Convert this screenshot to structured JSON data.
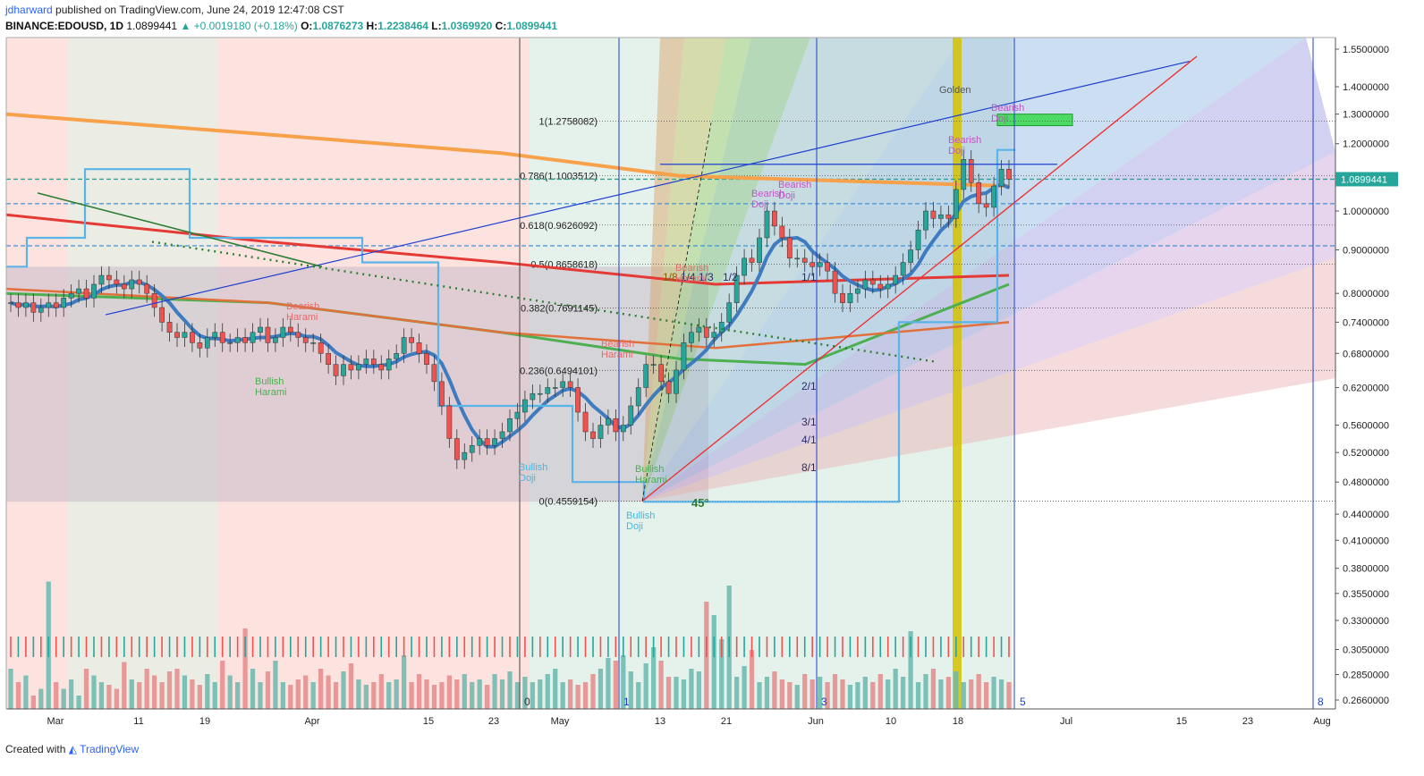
{
  "header": {
    "user": "jdharward",
    "published": "published on TradingView.com, June 24, 2019 12:47:08 CST",
    "symbol": "BINANCE:EDOUSD, 1D",
    "price": "1.0899441",
    "change": "▲ +0.0019180 (+0.18%)",
    "o_label": "O:",
    "o": "1.0876273",
    "h_label": "H:",
    "h": "1.2238464",
    "l_label": "L:",
    "l": "1.0369920",
    "c_label": "C:",
    "c": "1.0899441"
  },
  "footer": {
    "created": "Created with",
    "brand": "TradingView"
  },
  "colors": {
    "up": "#26a69a",
    "down": "#ef5350",
    "ma200": "#f7a14a",
    "ema_blue": "#3e7bbf",
    "ma_red": "#e53935",
    "ma_green": "#4caf50",
    "ma_orange": "#e2703a",
    "gann_yellow": "#d4c200"
  },
  "chart_data": {
    "type": "candlestick",
    "price_axis_ticks": [
      "1.5500000",
      "1.4000000",
      "1.3000000",
      "1.2000000",
      "1.0000000",
      "0.9000000",
      "0.8000000",
      "0.7400000",
      "0.6800000",
      "0.6200000",
      "0.5600000",
      "0.5200000",
      "0.4800000",
      "0.4400000",
      "0.4100000",
      "0.3800000",
      "0.3550000",
      "0.3300000",
      "0.3050000",
      "0.2850000",
      "0.2660000"
    ],
    "current_price_label": "1.0899441",
    "time_axis_ticks": [
      "Mar",
      "11",
      "19",
      "Apr",
      "15",
      "23",
      "May",
      "13",
      "21",
      "Jun",
      "10",
      "18",
      "Jul",
      "15",
      "23",
      "Aug"
    ],
    "fib_levels": [
      {
        "label": "1(1.2758082)",
        "value": 1.2758082
      },
      {
        "label": "0.786(1.1003512)",
        "value": 1.1003512
      },
      {
        "label": "0.618(0.9626092)",
        "value": 0.9626092
      },
      {
        "label": "0.5(0.8658618)",
        "value": 0.8658618
      },
      {
        "label": "0.382(0.7691145)",
        "value": 0.7691145
      },
      {
        "label": "0.236(0.6494101)",
        "value": 0.6494101
      },
      {
        "label": "0(0.4559154)",
        "value": 0.4559154
      }
    ],
    "gann_fan_labels": [
      "1/8",
      "1/4",
      "1/3",
      "1/2",
      "1/1",
      "2/1",
      "3/1",
      "4/1",
      "8/1"
    ],
    "angle_label": "45°",
    "cycle_numbers": [
      "0",
      "1",
      "3",
      "5",
      "8"
    ],
    "annotations": [
      {
        "text": "Golden"
      },
      {
        "text": "Bearish Doji"
      },
      {
        "text": "Bearish Doji"
      },
      {
        "text": "Bearish Doji"
      },
      {
        "text": "Bearish Doji"
      },
      {
        "text": "Bearish Harami"
      },
      {
        "text": "Bearish Harami"
      },
      {
        "text": "Bearish Harami"
      },
      {
        "text": "Bullish Harami"
      },
      {
        "text": "Bullish Harami"
      },
      {
        "text": "Bullish Doji"
      },
      {
        "text": "Bullish Doji"
      }
    ],
    "close_series": [
      0.78,
      0.77,
      0.78,
      0.76,
      0.77,
      0.78,
      0.77,
      0.79,
      0.8,
      0.81,
      0.79,
      0.82,
      0.84,
      0.83,
      0.82,
      0.81,
      0.83,
      0.82,
      0.8,
      0.77,
      0.74,
      0.72,
      0.71,
      0.72,
      0.7,
      0.69,
      0.71,
      0.72,
      0.7,
      0.7,
      0.71,
      0.7,
      0.72,
      0.73,
      0.7,
      0.71,
      0.73,
      0.72,
      0.71,
      0.7,
      0.7,
      0.68,
      0.66,
      0.64,
      0.66,
      0.65,
      0.66,
      0.67,
      0.66,
      0.65,
      0.67,
      0.68,
      0.71,
      0.7,
      0.68,
      0.66,
      0.63,
      0.59,
      0.54,
      0.51,
      0.52,
      0.53,
      0.54,
      0.53,
      0.54,
      0.55,
      0.57,
      0.58,
      0.6,
      0.61,
      0.61,
      0.62,
      0.62,
      0.63,
      0.62,
      0.58,
      0.55,
      0.54,
      0.56,
      0.57,
      0.55,
      0.56,
      0.59,
      0.62,
      0.66,
      0.66,
      0.63,
      0.61,
      0.65,
      0.7,
      0.72,
      0.73,
      0.71,
      0.72,
      0.74,
      0.78,
      0.84,
      0.88,
      0.87,
      0.93,
      1.0,
      0.96,
      0.93,
      0.88,
      0.88,
      0.87,
      0.86,
      0.87,
      0.85,
      0.8,
      0.78,
      0.8,
      0.81,
      0.83,
      0.82,
      0.81,
      0.82,
      0.84,
      0.87,
      0.9,
      0.95,
      1.0,
      0.98,
      0.99,
      0.98,
      1.06,
      1.15,
      1.08,
      1.02,
      1.01,
      1.07,
      1.12,
      1.09
    ],
    "volume_series": [
      0.3,
      0.2,
      0.25,
      0.1,
      0.15,
      0.95,
      0.2,
      0.15,
      0.22,
      0.1,
      0.3,
      0.25,
      0.2,
      0.18,
      0.15,
      0.35,
      0.22,
      0.2,
      0.3,
      0.25,
      0.2,
      0.28,
      0.3,
      0.25,
      0.22,
      0.18,
      0.26,
      0.2,
      0.36,
      0.25,
      0.2,
      0.6,
      0.3,
      0.2,
      0.28,
      0.36,
      0.2,
      0.18,
      0.22,
      0.25,
      0.2,
      0.3,
      0.25,
      0.2,
      0.28,
      0.34,
      0.22,
      0.18,
      0.2,
      0.26,
      0.2,
      0.22,
      0.4,
      0.2,
      0.26,
      0.22,
      0.18,
      0.2,
      0.25,
      0.22,
      0.26,
      0.2,
      0.22,
      0.18,
      0.26,
      0.22,
      0.28,
      0.2,
      0.24,
      0.2,
      0.22,
      0.26,
      0.3,
      0.2,
      0.22,
      0.18,
      0.2,
      0.26,
      0.3,
      0.38,
      0.36,
      0.4,
      0.28,
      0.2,
      0.34,
      0.46,
      0.36,
      0.24,
      0.24,
      0.22,
      0.3,
      0.28,
      0.8,
      0.7,
      0.52,
      0.92,
      0.24,
      0.32,
      0.44,
      0.2,
      0.24,
      0.28,
      0.22,
      0.2,
      0.18,
      0.26,
      0.22,
      0.24,
      0.2,
      0.26,
      0.22,
      0.18,
      0.2,
      0.24,
      0.2,
      0.26,
      0.22,
      0.3,
      0.24,
      0.58,
      0.2,
      0.26,
      0.3,
      0.22,
      0.24,
      0.28,
      0.2,
      0.22,
      0.26,
      0.2,
      0.24,
      0.22,
      0.2
    ]
  }
}
